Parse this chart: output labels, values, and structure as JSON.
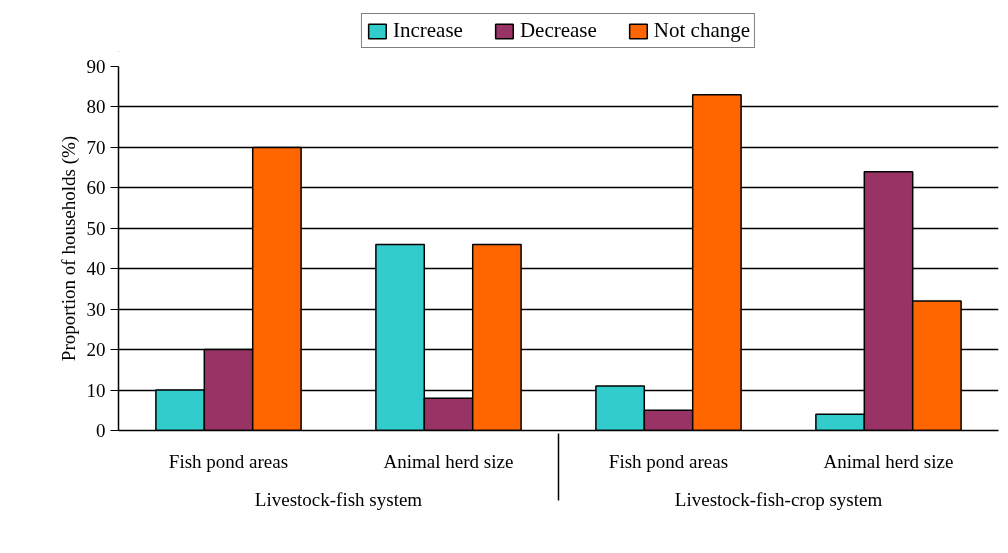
{
  "chart_data": {
    "type": "bar",
    "ylabel": "Proportion of households (%)",
    "categories": [
      "Fish pond areas",
      "Animal herd size",
      "Fish pond areas",
      "Animal herd size"
    ],
    "annotations": [
      "Livestock-fish system",
      "Livestock-fish-crop system"
    ],
    "series": [
      {
        "name": "Increase",
        "color": "#33cccc",
        "values": [
          10,
          46,
          11,
          4
        ]
      },
      {
        "name": "Decrease",
        "color": "#993366",
        "values": [
          20,
          8,
          5,
          64
        ]
      },
      {
        "name": "Not change",
        "color": "#ff6600",
        "values": [
          70,
          46,
          83,
          32
        ]
      }
    ],
    "ylim": [
      0,
      90
    ],
    "yticks": [
      0,
      10,
      20,
      30,
      40,
      50,
      60,
      70,
      80,
      90
    ],
    "grid": "y",
    "legend": "top"
  }
}
